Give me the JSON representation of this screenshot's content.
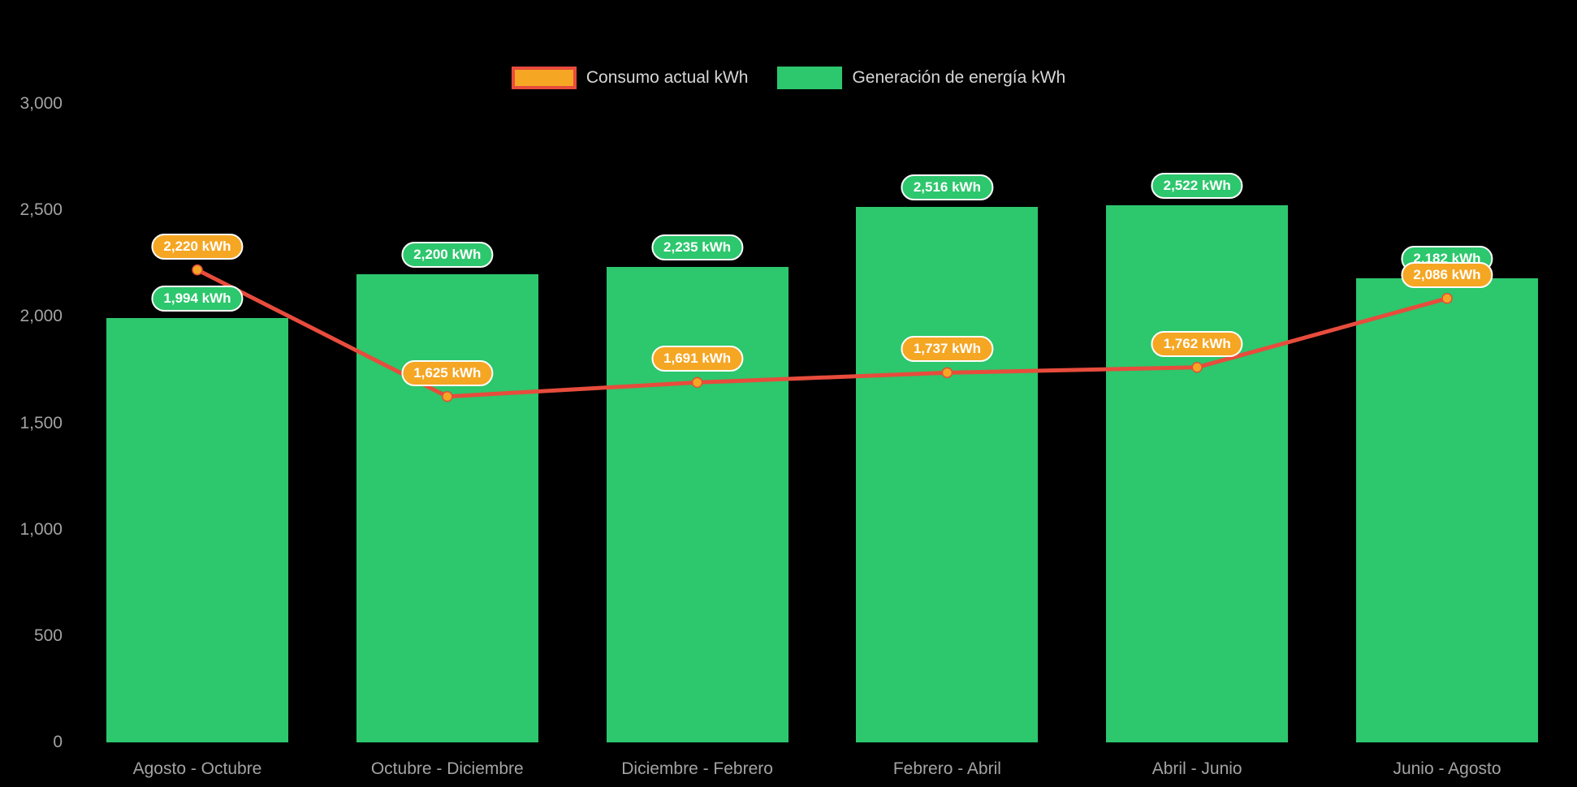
{
  "legend": {
    "items": [
      {
        "label": "Consumo actual kWh",
        "swatch_fill": "#F5A623",
        "swatch_border": "#E74C3C"
      },
      {
        "label": "Generación de energía kWh",
        "swatch_fill": "#2DC76D",
        "swatch_border": "#2DC76D"
      }
    ]
  },
  "chart_data": {
    "type": "combo-bar-line",
    "title": "",
    "background": "#000000",
    "grid": false,
    "legend_position": "top",
    "categories": [
      "Agosto - Octubre",
      "Octubre - Diciembre",
      "Diciembre - Febrero",
      "Febrero - Abril",
      "Abril - Junio",
      "Junio - Agosto"
    ],
    "series": [
      {
        "name": "Generación de energía kWh",
        "type": "bar",
        "color": "#2DC76D",
        "values": [
          1994,
          2200,
          2235,
          2516,
          2522,
          2182
        ],
        "labels": [
          "1,994 kWh",
          "2,200 kWh",
          "2,235 kWh",
          "2,516 kWh",
          "2,522 kWh",
          "2,182 kWh"
        ]
      },
      {
        "name": "Consumo actual kWh",
        "type": "line",
        "color": "#E74C3C",
        "point_color": "#F5A623",
        "values": [
          2220,
          1625,
          1691,
          1737,
          1762,
          2086
        ],
        "labels": [
          "2,220 kWh",
          "1,625 kWh",
          "1,691 kWh",
          "1,737 kWh",
          "1,762 kWh",
          "2,086 kWh"
        ]
      }
    ],
    "ylim": [
      0,
      3000
    ],
    "yticks": [
      0,
      500,
      1000,
      1500,
      2000,
      2500,
      3000
    ],
    "ytick_labels": [
      "0",
      "500",
      "1,000",
      "1,500",
      "2,000",
      "2,500",
      "3,000"
    ]
  }
}
